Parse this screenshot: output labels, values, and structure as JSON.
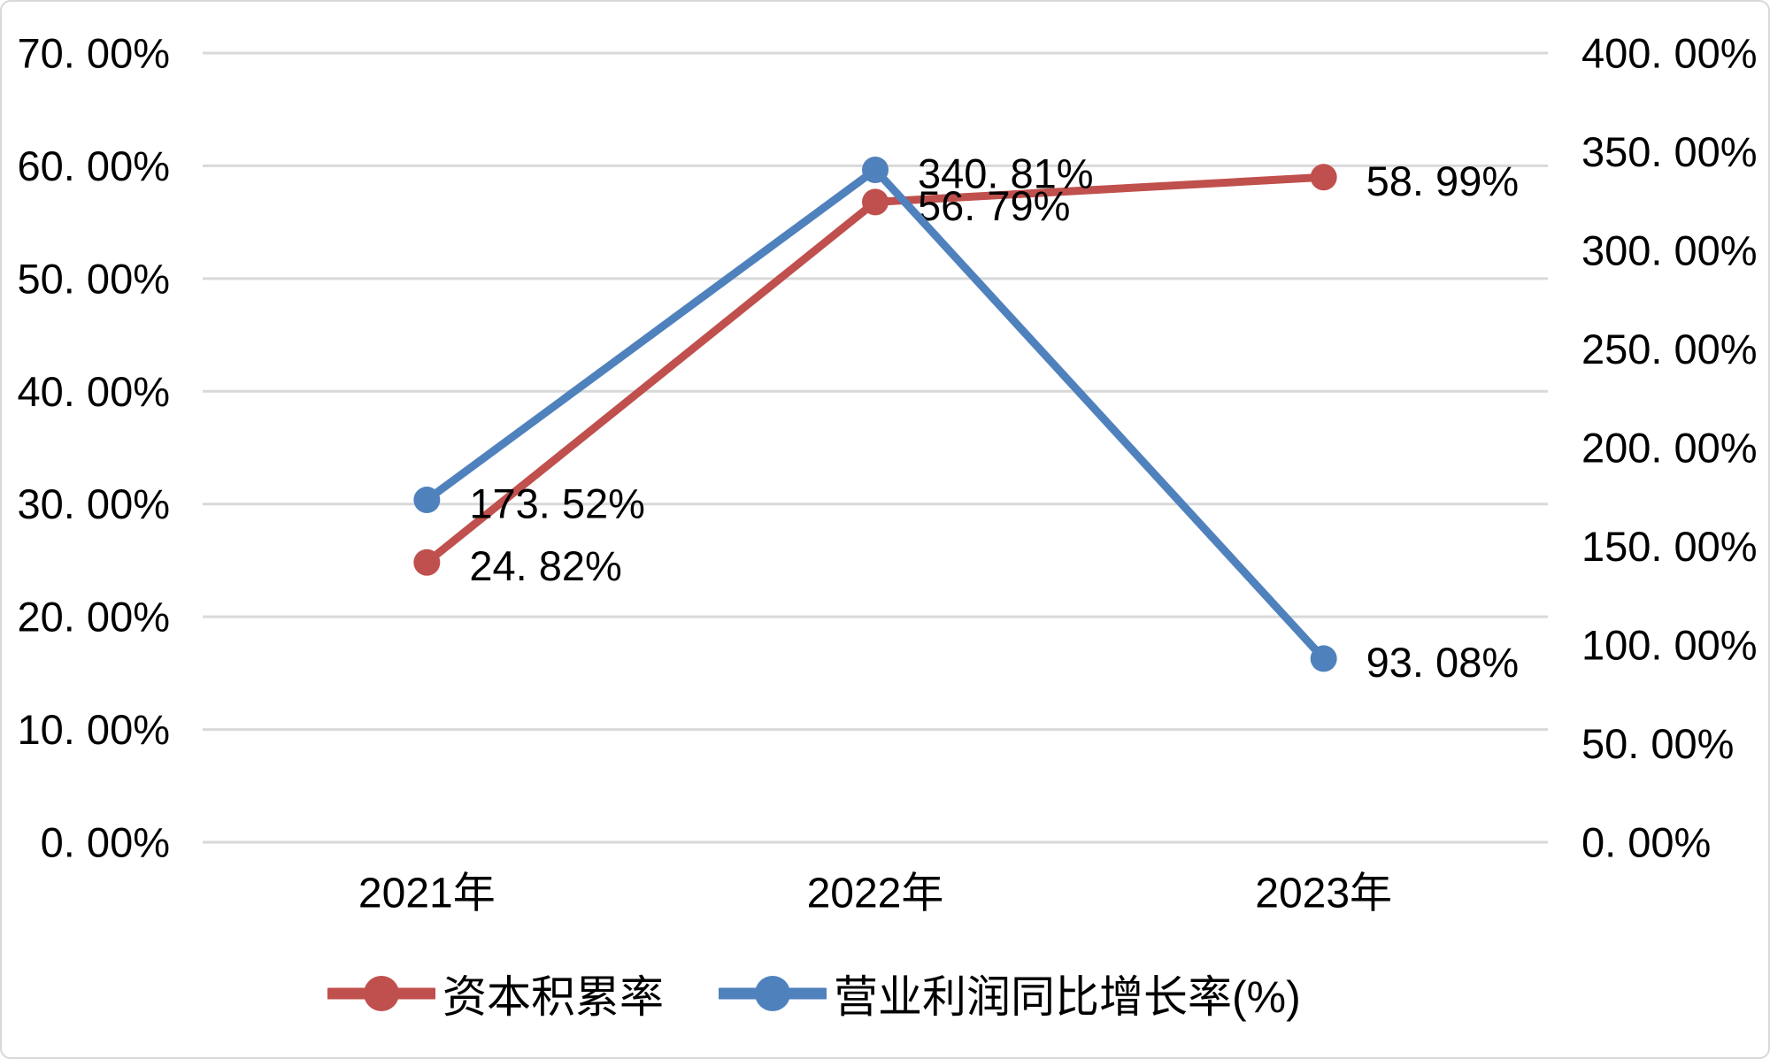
{
  "chart_data": {
    "type": "line",
    "title": "",
    "categories": [
      "2021年",
      "2022年",
      "2023年"
    ],
    "series": [
      {
        "name": "资本积累率",
        "axis": "left",
        "color": "#C0504D",
        "values": [
          24.82,
          56.79,
          58.99
        ],
        "point_labels": [
          "24. 82%",
          "56. 79%",
          "58. 99%"
        ]
      },
      {
        "name": "营业利润同比增长率(%)",
        "axis": "right",
        "color": "#4F81BD",
        "values": [
          173.52,
          340.81,
          93.08
        ],
        "point_labels": [
          "173. 52%",
          "340. 81%",
          "93. 08%"
        ]
      }
    ],
    "left_axis": {
      "min": 0,
      "max": 70,
      "step": 10,
      "tick_values": [
        0,
        10,
        20,
        30,
        40,
        50,
        60,
        70
      ],
      "tick_labels": [
        "0. 00%",
        "10. 00%",
        "20. 00%",
        "30. 00%",
        "40. 00%",
        "50. 00%",
        "60. 00%",
        "70. 00%"
      ]
    },
    "right_axis": {
      "min": 0,
      "max": 400,
      "step": 50,
      "tick_values": [
        0,
        50,
        100,
        150,
        200,
        250,
        300,
        350,
        400
      ],
      "tick_labels": [
        "0. 00%",
        "50. 00%",
        "100. 00%",
        "150. 00%",
        "200. 00%",
        "250. 00%",
        "300. 00%",
        "350. 00%",
        "400. 00%"
      ]
    },
    "grid": true,
    "legend_position": "bottom",
    "colors": {
      "grid": "#D9D9D9",
      "background": "#FFFFFF",
      "border": "#D8D8D8",
      "text": "#000000",
      "series1": "#C0504D",
      "series2": "#4F81BD"
    }
  }
}
